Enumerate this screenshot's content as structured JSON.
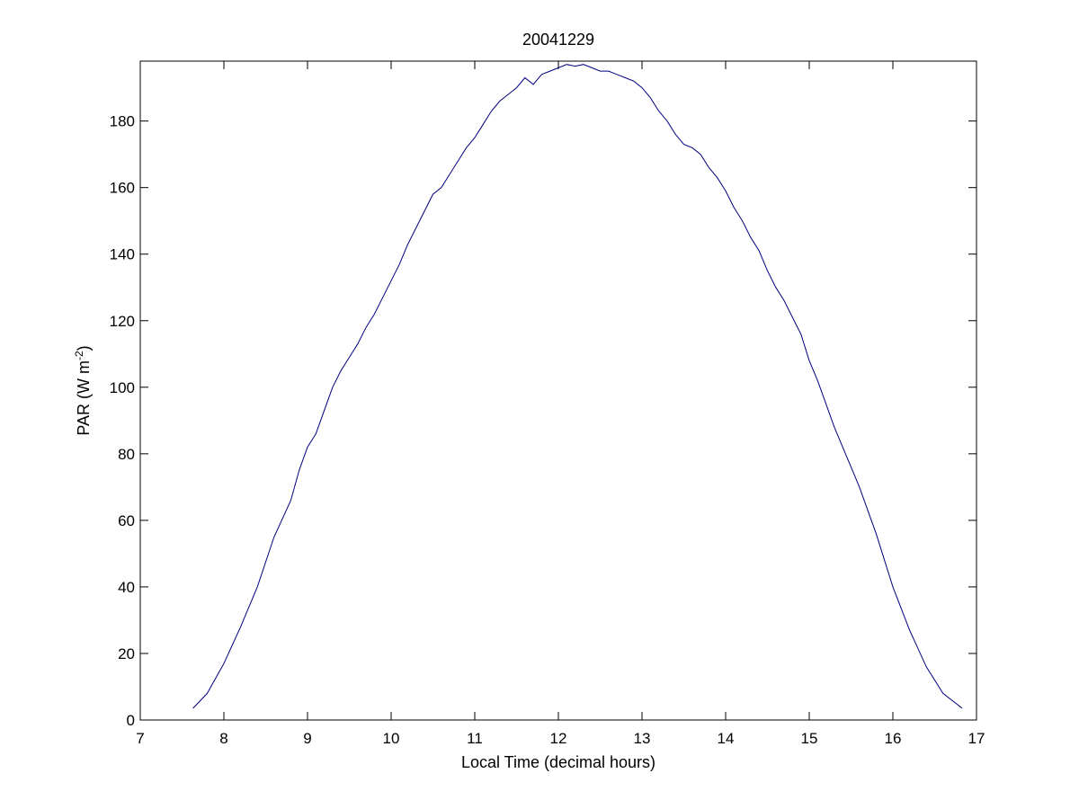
{
  "chart_data": {
    "type": "line",
    "title": "20041229",
    "xlabel": "Local Time (decimal hours)",
    "ylabel": {
      "main": "PAR (W m",
      "superscript": "-2",
      "suffix": ")"
    },
    "xlim": [
      7,
      17
    ],
    "ylim": [
      0,
      198
    ],
    "xticks": [
      7,
      8,
      9,
      10,
      11,
      12,
      13,
      14,
      15,
      16,
      17
    ],
    "yticks": [
      0,
      20,
      40,
      60,
      80,
      100,
      120,
      140,
      160,
      180
    ],
    "grid": false,
    "box": true,
    "line_color": "#000080",
    "series": [
      {
        "x": [
          7.63,
          7.8,
          8.0,
          8.2,
          8.4,
          8.6,
          8.8,
          8.9,
          9.0,
          9.1,
          9.2,
          9.3,
          9.4,
          9.5,
          9.6,
          9.7,
          9.8,
          9.9,
          10.0,
          10.1,
          10.2,
          10.3,
          10.4,
          10.5,
          10.6,
          10.7,
          10.8,
          10.9,
          11.0,
          11.1,
          11.2,
          11.3,
          11.4,
          11.5,
          11.6,
          11.7,
          11.8,
          11.9,
          12.0,
          12.1,
          12.2,
          12.3,
          12.4,
          12.5,
          12.6,
          12.7,
          12.8,
          12.9,
          13.0,
          13.1,
          13.2,
          13.3,
          13.4,
          13.5,
          13.6,
          13.7,
          13.8,
          13.9,
          14.0,
          14.1,
          14.2,
          14.3,
          14.4,
          14.5,
          14.6,
          14.7,
          14.8,
          14.9,
          15.0,
          15.1,
          15.2,
          15.3,
          15.4,
          15.5,
          15.6,
          15.7,
          15.8,
          15.9,
          16.0,
          16.2,
          16.4,
          16.6,
          16.83
        ],
        "y": [
          3.5,
          8,
          17,
          28,
          40,
          55,
          66,
          75,
          82,
          86,
          93,
          100,
          105,
          109,
          113,
          118,
          122,
          127,
          132,
          137,
          143,
          148,
          153,
          158,
          160,
          164,
          168,
          172,
          175,
          179,
          183,
          186,
          188,
          190,
          193,
          191,
          194,
          195,
          196,
          197,
          196.5,
          197,
          196,
          195,
          195,
          194,
          193,
          192,
          190,
          187,
          183,
          180,
          176,
          173,
          172,
          170,
          166,
          163,
          159,
          154,
          150,
          145,
          141,
          135,
          130,
          126,
          121,
          116,
          108,
          102,
          95,
          88,
          82,
          76,
          70,
          63,
          56,
          48,
          40,
          27,
          16,
          8,
          3.5
        ]
      }
    ]
  }
}
